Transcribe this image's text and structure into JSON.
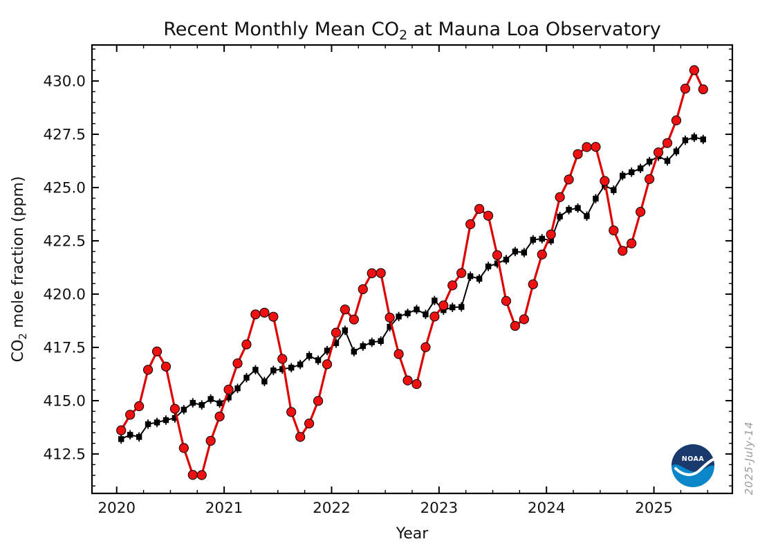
{
  "header": {
    "title_pre": "Recent Monthly Mean CO",
    "title_sub": "2",
    "title_post": " at Mauna Loa Observatory"
  },
  "axes": {
    "xlabel": "Year",
    "ylabel_pre": "CO",
    "ylabel_sub": "2",
    "ylabel_post": " mole fraction (ppm)"
  },
  "watermark": "2025-July-14",
  "logo": {
    "text": "NOAA",
    "navy": "#1a3a6d",
    "blue": "#0b87c9",
    "gull": "#ffffff"
  },
  "chart_data": {
    "type": "line",
    "title": "Recent Monthly Mean CO2 at Mauna Loa Observatory",
    "xlabel": "Year",
    "ylabel": "CO2 mole fraction (ppm)",
    "xlim": [
      2019.77,
      2025.73
    ],
    "ylim": [
      410.65,
      431.69
    ],
    "x_major_ticks": [
      2020,
      2021,
      2022,
      2023,
      2024,
      2025
    ],
    "x_minor_step": 0.25,
    "y_major_ticks": [
      412.5,
      415.0,
      417.5,
      420.0,
      422.5,
      425.0,
      427.5,
      430.0
    ],
    "y_minor_step": 0.5,
    "grid": false,
    "legend": "none",
    "start_year": 2020,
    "cadence": "monthly",
    "series": [
      {
        "name": "deseasonalized_trend",
        "color": "#000000",
        "marker": "square",
        "error_bar": 0.22,
        "values": [
          413.2,
          413.4,
          413.3,
          413.9,
          413.98,
          414.09,
          414.19,
          414.58,
          414.9,
          414.8,
          415.08,
          414.88,
          415.15,
          415.58,
          416.08,
          416.45,
          415.9,
          416.42,
          416.48,
          416.55,
          416.7,
          417.1,
          416.9,
          417.35,
          417.7,
          418.3,
          417.3,
          417.56,
          417.74,
          417.8,
          418.47,
          418.95,
          419.1,
          419.28,
          419.05,
          419.7,
          419.25,
          419.38,
          419.4,
          420.84,
          420.72,
          421.3,
          421.44,
          421.62,
          422.0,
          421.95,
          422.55,
          422.6,
          422.52,
          423.64,
          423.96,
          424.04,
          423.66,
          424.48,
          425.1,
          424.88,
          425.56,
          425.72,
          425.9,
          426.22,
          426.47,
          426.25,
          426.7,
          427.22,
          427.36,
          427.26
        ]
      },
      {
        "name": "monthly_mean",
        "color": "#dd0000",
        "marker": "circle",
        "error_bar": 0,
        "values": [
          413.61,
          414.34,
          414.74,
          416.45,
          417.31,
          416.6,
          414.62,
          412.78,
          411.52,
          411.51,
          413.12,
          414.26,
          415.52,
          416.75,
          417.64,
          419.05,
          419.13,
          418.94,
          416.96,
          414.47,
          413.3,
          413.93,
          414.99,
          416.71,
          418.19,
          419.28,
          418.81,
          420.23,
          420.98,
          420.99,
          418.9,
          417.19,
          415.95,
          415.78,
          417.51,
          418.95,
          419.47,
          420.41,
          420.99,
          423.28,
          424.0,
          423.68,
          421.83,
          419.68,
          418.51,
          418.82,
          420.46,
          421.86,
          422.8,
          424.55,
          425.38,
          426.57,
          426.9,
          426.91,
          425.31,
          422.99,
          422.03,
          422.38,
          423.86,
          425.4,
          426.65,
          427.09,
          428.15,
          429.64,
          430.51,
          429.61
        ]
      }
    ]
  }
}
